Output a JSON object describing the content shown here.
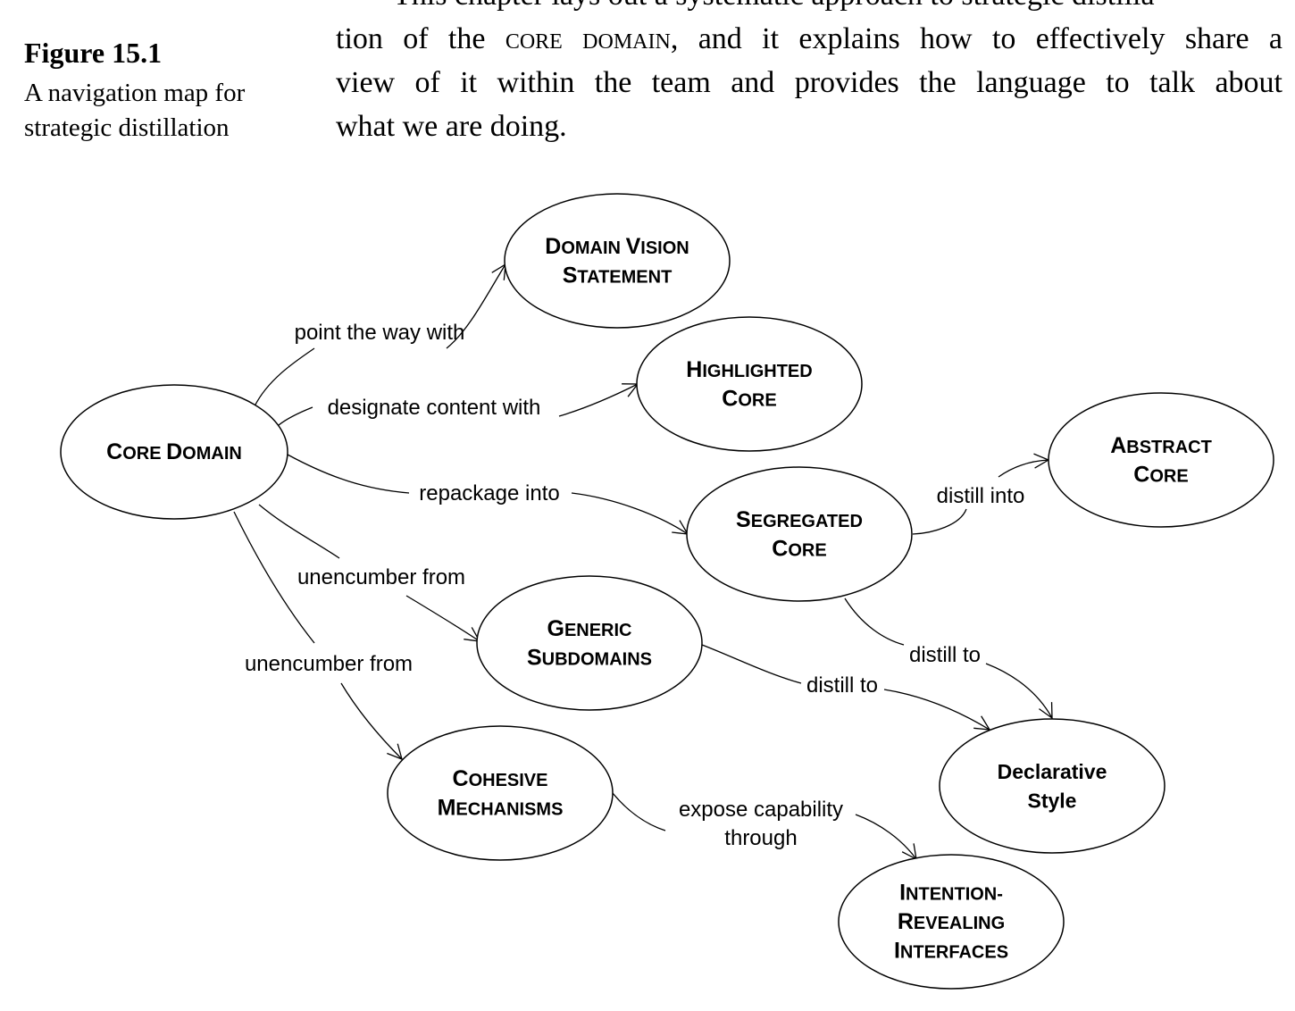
{
  "page": {
    "cropped_top_line": "This chapter lays out a systematic approach to strategic distilla-",
    "body_text": {
      "line1_pre": "tion of the ",
      "line1_term": "CORE DOMAIN",
      "line1_post": ", and it explains how to effectively share a",
      "line2": "view of it within the team and provides the language to talk about",
      "line3": "what we are doing."
    }
  },
  "figure": {
    "label": "Figure 15.1",
    "caption_lines": [
      "A navigation map for",
      "strategic distillation"
    ]
  },
  "diagram": {
    "nodes": [
      {
        "id": "core-domain",
        "lines": [
          "CORE DOMAIN"
        ]
      },
      {
        "id": "domain-vision-statement",
        "lines": [
          "DOMAIN VISION",
          "STATEMENT"
        ]
      },
      {
        "id": "highlighted-core",
        "lines": [
          "HIGHLIGHTED",
          "CORE"
        ]
      },
      {
        "id": "abstract-core",
        "lines": [
          "ABSTRACT",
          "CORE"
        ]
      },
      {
        "id": "segregated-core",
        "lines": [
          "SEGREGATED",
          "CORE"
        ]
      },
      {
        "id": "generic-subdomains",
        "lines": [
          "GENERIC",
          "SUBDOMAINS"
        ]
      },
      {
        "id": "cohesive-mechanisms",
        "lines": [
          "COHESIVE",
          "MECHANISMS"
        ]
      },
      {
        "id": "declarative-style",
        "lines": [
          "Declarative",
          "Style"
        ]
      },
      {
        "id": "intention-revealing-interfaces",
        "lines": [
          "INTENTION-",
          "REVEALING",
          "INTERFACES"
        ]
      }
    ],
    "edges": [
      {
        "id": "point-the-way",
        "from": "core-domain",
        "to": "domain-vision-statement",
        "label": [
          "point the way with"
        ]
      },
      {
        "id": "designate-content",
        "from": "core-domain",
        "to": "highlighted-core",
        "label": [
          "designate content with"
        ]
      },
      {
        "id": "repackage-into",
        "from": "core-domain",
        "to": "segregated-core",
        "label": [
          "repackage into"
        ]
      },
      {
        "id": "unencumber-generic",
        "from": "core-domain",
        "to": "generic-subdomains",
        "label": [
          "unencumber from"
        ]
      },
      {
        "id": "unencumber-cohesive",
        "from": "core-domain",
        "to": "cohesive-mechanisms",
        "label": [
          "unencumber from"
        ]
      },
      {
        "id": "distill-into",
        "from": "segregated-core",
        "to": "abstract-core",
        "label": [
          "distill into"
        ]
      },
      {
        "id": "segregated-distill-to",
        "from": "segregated-core",
        "to": "declarative-style",
        "label": [
          "distill to"
        ]
      },
      {
        "id": "generic-distill-to",
        "from": "generic-subdomains",
        "to": "declarative-style",
        "label": [
          "distill to"
        ]
      },
      {
        "id": "expose-capability",
        "from": "cohesive-mechanisms",
        "to": "intention-revealing-interfaces",
        "label": [
          "expose capability",
          "through"
        ]
      }
    ]
  }
}
